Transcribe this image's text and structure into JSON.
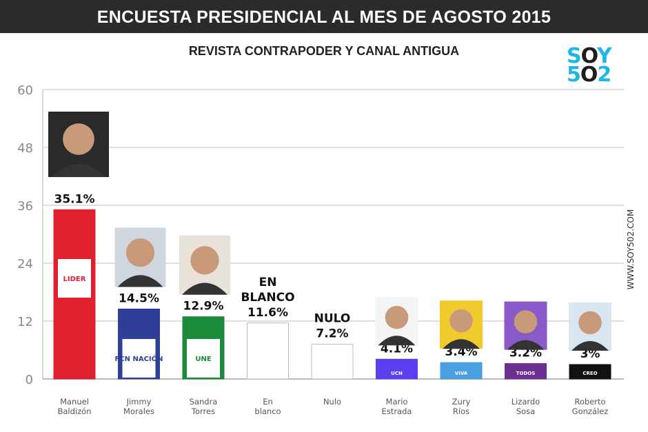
{
  "header": {
    "title": "ENCUESTA PRESIDENCIAL AL MES DE AGOSTO 2015",
    "subtitle": "REVISTA CONTRAPODER Y CANAL ANTIGUA",
    "logo": "SOY 502",
    "side_text": "WWW.SOY502.COM"
  },
  "colors": {
    "logo_blue": "#1fb8e6",
    "logo_dark": "#1e1e1e"
  },
  "chart_data": {
    "type": "bar",
    "title": "ENCUESTA PRESIDENCIAL AL MES DE AGOSTO 2015",
    "subtitle": "REVISTA CONTRAPODER Y CANAL ANTIGUA",
    "ylim": [
      0,
      60
    ],
    "yticks": [
      0,
      12,
      24,
      36,
      48,
      60
    ],
    "grid": true,
    "categories": [
      "Manuel Baldizón",
      "Jimmy Morales",
      "Sandra Torres",
      "En blanco",
      "Nulo",
      "Mario Estrada",
      "Zury Ríos",
      "Lizardo Sosa",
      "Roberto González"
    ],
    "values": [
      35.1,
      14.5,
      12.9,
      11.6,
      7.2,
      4.1,
      3.4,
      3.2,
      3
    ],
    "data_labels": [
      "35.1%",
      "14.5%",
      "12.9%",
      "EN BLANCO 11.6%",
      "NULO 7.2%",
      "4.1%",
      "3.4%",
      "3.2%",
      "3%"
    ],
    "bar_colors": [
      "#e0202e",
      "#2f3f97",
      "#1b8a3a",
      "#ffffff",
      "#ffffff",
      "#5b3ff0",
      "#4a9fe0",
      "#6a2f8f",
      "#111111"
    ],
    "party_logos": [
      "LIDER",
      "FCN NACIÓN",
      "UNE",
      "",
      "",
      "UCN",
      "VIVA",
      "TODOS",
      "CREO"
    ],
    "has_photo": [
      true,
      true,
      true,
      false,
      false,
      true,
      true,
      true,
      true
    ]
  }
}
